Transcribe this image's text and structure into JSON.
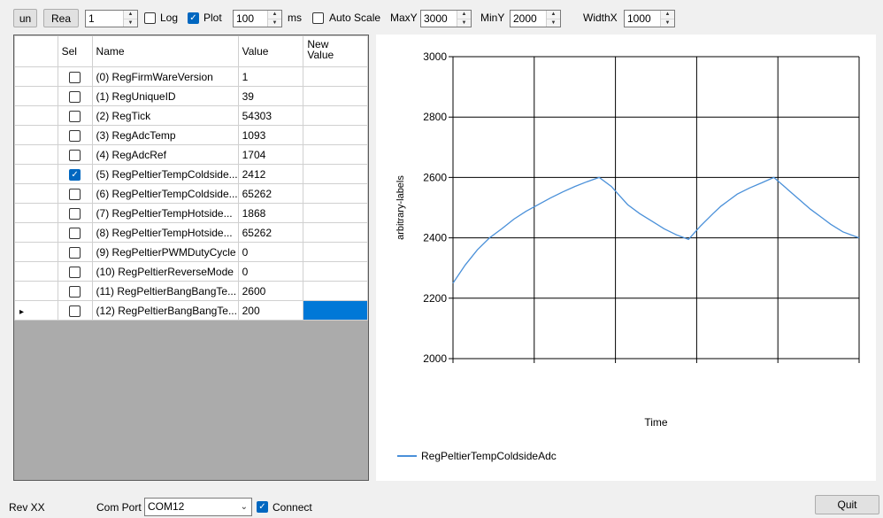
{
  "toolbar": {
    "btn1": "un",
    "btn2": "Rea",
    "count_value": "1",
    "log_label": "Log",
    "log_checked": false,
    "plot_label": "Plot",
    "plot_checked": true,
    "interval_value": "100",
    "interval_unit": "ms",
    "autoscale_label": "Auto Scale",
    "autoscale_checked": false,
    "maxy_label": "MaxY",
    "maxy_value": "3000",
    "miny_label": "MinY",
    "miny_value": "2000",
    "widthx_label": "WidthX",
    "widthx_value": "1000"
  },
  "grid": {
    "headers": {
      "sel": "Sel",
      "name": "Name",
      "value": "Value",
      "new_value": "New\nValue"
    },
    "rows": [
      {
        "sel": false,
        "name": "(0) RegFirmWareVersion",
        "value": "1",
        "new": ""
      },
      {
        "sel": false,
        "name": "(1) RegUniqueID",
        "value": "39",
        "new": ""
      },
      {
        "sel": false,
        "name": "(2) RegTick",
        "value": "54303",
        "new": ""
      },
      {
        "sel": false,
        "name": "(3) RegAdcTemp",
        "value": "1093",
        "new": ""
      },
      {
        "sel": false,
        "name": "(4) RegAdcRef",
        "value": "1704",
        "new": ""
      },
      {
        "sel": true,
        "name": "(5) RegPeltierTempColdside...",
        "value": "2412",
        "new": ""
      },
      {
        "sel": false,
        "name": "(6) RegPeltierTempColdside...",
        "value": "65262",
        "new": ""
      },
      {
        "sel": false,
        "name": "(7) RegPeltierTempHotside...",
        "value": "1868",
        "new": ""
      },
      {
        "sel": false,
        "name": "(8) RegPeltierTempHotside...",
        "value": "65262",
        "new": ""
      },
      {
        "sel": false,
        "name": "(9) RegPeltierPWMDutyCycle",
        "value": "0",
        "new": ""
      },
      {
        "sel": false,
        "name": "(10) RegPeltierReverseMode",
        "value": "0",
        "new": ""
      },
      {
        "sel": false,
        "name": "(11) RegPeltierBangBangTe...",
        "value": "2600",
        "new": ""
      },
      {
        "sel": false,
        "name": "(12) RegPeltierBangBangTe...",
        "value": "200",
        "new": "",
        "current": true
      }
    ]
  },
  "chart_data": {
    "type": "line",
    "xlabel": "Time",
    "ylabel": "arbitrary-labels",
    "ylim": [
      2000,
      3000
    ],
    "yticks": [
      "2000",
      "2200",
      "2400",
      "2600",
      "2800",
      "3000"
    ],
    "xlim": [
      0,
      1000
    ],
    "grid": true,
    "legend_position": "bottom-left",
    "series": [
      {
        "name": "RegPeltierTempColdsideAdc",
        "color": "#4a90d9",
        "x": [
          0,
          30,
          60,
          90,
          120,
          150,
          180,
          210,
          240,
          270,
          300,
          330,
          360,
          390,
          410,
          430,
          460,
          490,
          520,
          550,
          580,
          610,
          640,
          660,
          680,
          700,
          730,
          760,
          790,
          820,
          850,
          880,
          910,
          930,
          960,
          1000
        ],
        "values": [
          2250,
          2310,
          2360,
          2400,
          2430,
          2462,
          2488,
          2510,
          2532,
          2552,
          2570,
          2586,
          2600,
          2570,
          2540,
          2510,
          2480,
          2455,
          2430,
          2410,
          2395,
          2440,
          2480,
          2505,
          2525,
          2545,
          2565,
          2582,
          2600,
          2565,
          2530,
          2495,
          2465,
          2445,
          2420,
          2400
        ]
      }
    ]
  },
  "status": {
    "rev": "Rev XX",
    "comport_label": "Com Port",
    "comport_value": "COM12",
    "connect_label": "Connect",
    "connect_checked": true,
    "quit_label": "Quit"
  }
}
